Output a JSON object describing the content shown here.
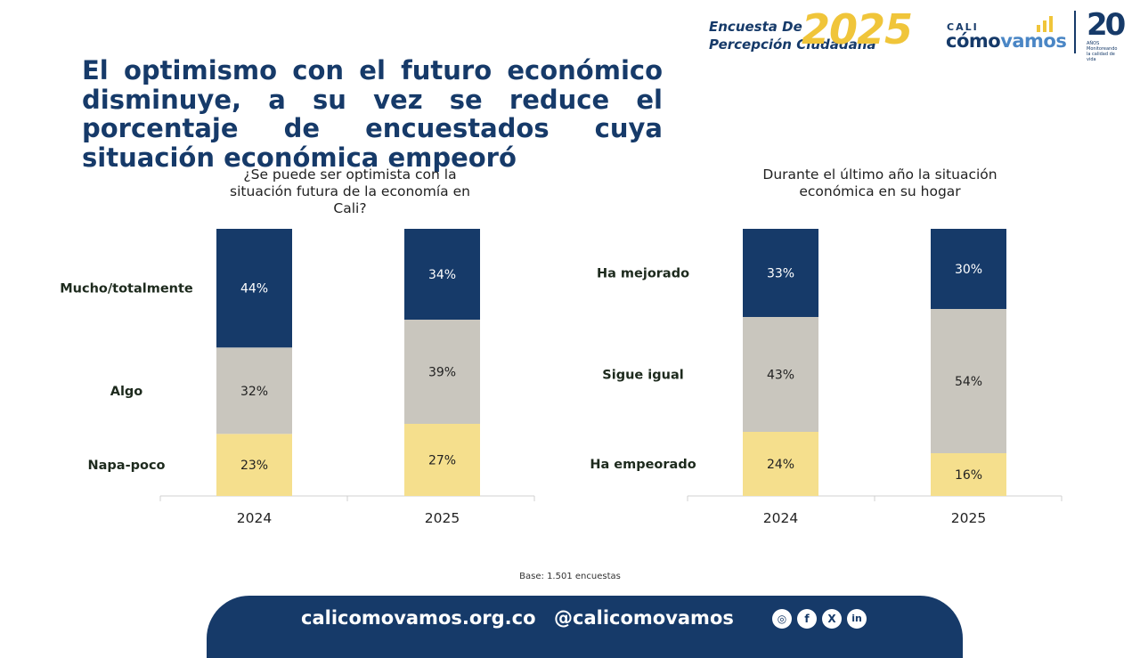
{
  "headline": "El optimismo con el futuro económico disminuye, a su vez se reduce el porcentaje de encuestados cuya situación económica empeoró",
  "brand": {
    "survey_line1": "Encuesta De",
    "survey_line2": "Percepción Ciudadana",
    "year": "2025",
    "cali": "CALI",
    "como": "cómo",
    "vamos": "vamos",
    "anniversary": "20",
    "anniversary_sub": "AÑOS Monitoreando la calidad de vida"
  },
  "colors": {
    "navy": "#163a69",
    "gray": "#c9c6be",
    "yellow": "#f5df8d",
    "brand_yellow": "#f0c53a"
  },
  "chart_data": [
    {
      "type": "bar",
      "stacked": true,
      "title": "¿Se puede ser optimista con la situación futura de la economía en Cali?",
      "categories": [
        "2024",
        "2025"
      ],
      "series": [
        {
          "name": "Napa-poco",
          "values": [
            23,
            27
          ],
          "labels": [
            "23%",
            "27%"
          ],
          "color": "#f5df8d"
        },
        {
          "name": "Algo",
          "values": [
            32,
            39
          ],
          "labels": [
            "32%",
            "39%"
          ],
          "color": "#c9c6be"
        },
        {
          "name": "Mucho/totalmente",
          "values": [
            44,
            34
          ],
          "labels": [
            "44%",
            "34%"
          ],
          "color": "#163a69"
        }
      ],
      "ylim": [
        0,
        100
      ],
      "grid": false,
      "legend": "left"
    },
    {
      "type": "bar",
      "stacked": true,
      "title": "Durante el último año la situación económica en su hogar",
      "categories": [
        "2024",
        "2025"
      ],
      "series": [
        {
          "name": "Ha empeorado",
          "values": [
            24,
            16
          ],
          "labels": [
            "24%",
            "16%"
          ],
          "color": "#f5df8d"
        },
        {
          "name": "Sigue igual",
          "values": [
            43,
            54
          ],
          "labels": [
            "43%",
            "54%"
          ],
          "color": "#c9c6be"
        },
        {
          "name": "Ha mejorado",
          "values": [
            33,
            30
          ],
          "labels": [
            "33%",
            "30%"
          ],
          "color": "#163a69"
        }
      ],
      "ylim": [
        0,
        100
      ],
      "grid": false,
      "legend": "left"
    }
  ],
  "base_note": "Base: 1.501 encuestas",
  "footer": {
    "website": "calicomovamos.org.co",
    "handle": "@calicomovamos",
    "social_icons": [
      "instagram-icon",
      "facebook-icon",
      "x-icon",
      "linkedin-icon"
    ]
  }
}
